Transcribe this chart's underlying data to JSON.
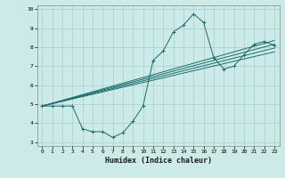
{
  "title": "",
  "xlabel": "Humidex (Indice chaleur)",
  "bg_color": "#cceae8",
  "grid_color": "#aacfce",
  "line_color": "#1a6b6b",
  "xlim": [
    -0.5,
    23.5
  ],
  "ylim": [
    2.8,
    10.2
  ],
  "yticks": [
    3,
    4,
    5,
    6,
    7,
    8,
    9,
    10
  ],
  "xticks": [
    0,
    1,
    2,
    3,
    4,
    5,
    6,
    7,
    8,
    9,
    10,
    11,
    12,
    13,
    14,
    15,
    16,
    17,
    18,
    19,
    20,
    21,
    22,
    23
  ],
  "main_line_x": [
    0,
    1,
    2,
    3,
    4,
    5,
    6,
    7,
    8,
    9,
    10,
    11,
    12,
    13,
    14,
    15,
    16,
    17,
    18,
    19,
    20,
    21,
    22,
    23
  ],
  "main_line_y": [
    4.9,
    4.9,
    4.9,
    4.9,
    3.7,
    3.55,
    3.55,
    3.25,
    3.5,
    4.1,
    4.9,
    7.3,
    7.8,
    8.8,
    9.15,
    9.75,
    9.3,
    7.45,
    6.85,
    7.0,
    7.6,
    8.15,
    8.3,
    8.1
  ],
  "linear_lines": [
    {
      "x": [
        0,
        23
      ],
      "y": [
        4.9,
        8.15
      ]
    },
    {
      "x": [
        0,
        23
      ],
      "y": [
        4.9,
        7.95
      ]
    },
    {
      "x": [
        0,
        23
      ],
      "y": [
        4.9,
        7.75
      ]
    },
    {
      "x": [
        0,
        23
      ],
      "y": [
        4.9,
        8.35
      ]
    }
  ],
  "xlabel_fontsize": 6,
  "tick_fontsize": 4.5,
  "linewidth": 0.7,
  "markersize": 2.5
}
